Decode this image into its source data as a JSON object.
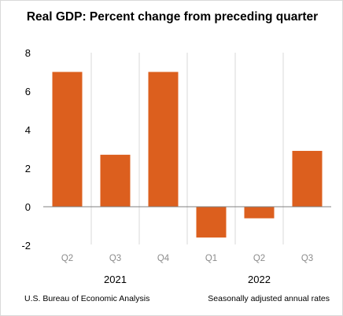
{
  "chart_data": {
    "type": "bar",
    "title": "Real GDP:  Percent change from preceding quarter",
    "categories": [
      "Q2",
      "Q3",
      "Q4",
      "Q1",
      "Q2",
      "Q3"
    ],
    "year_groups": [
      {
        "label": "2021",
        "span": [
          0,
          2
        ]
      },
      {
        "label": "2022",
        "span": [
          3,
          5
        ]
      }
    ],
    "series": [
      {
        "values": [
          7.0,
          2.7,
          7.0,
          -1.6,
          -0.6,
          2.9
        ],
        "color": "#dc5f1e"
      }
    ],
    "ylim": [
      -2,
      8
    ],
    "yticks": [
      8,
      6,
      4,
      2,
      0,
      -2
    ],
    "grid": "vertical separators between quarters",
    "xlabel": "",
    "ylabel": ""
  },
  "footer": {
    "source": "U.S. Bureau of Economic Analysis",
    "note": "Seasonally adjusted annual rates"
  },
  "colors": {
    "bar": "#dc5f1e",
    "separator": "#d9d9d9",
    "zero_line": "#808080",
    "tick_label": "#8c8c8c"
  }
}
